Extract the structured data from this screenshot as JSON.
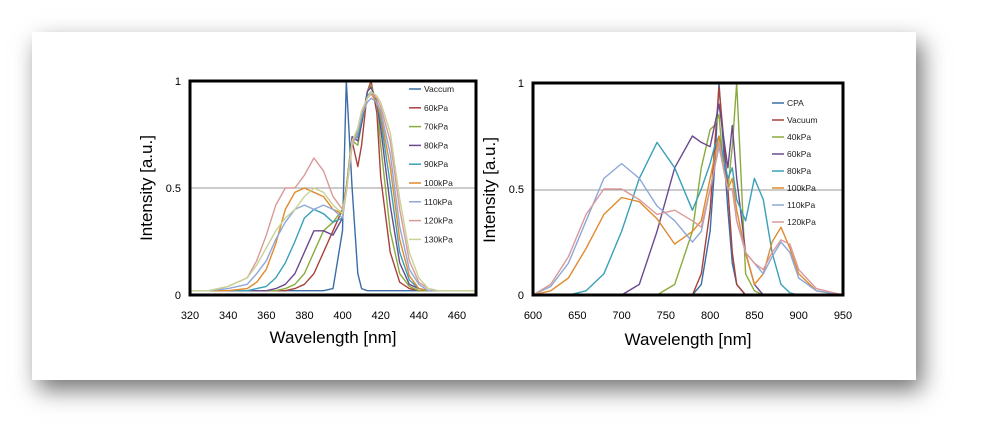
{
  "chart_data": [
    {
      "type": "line",
      "title": "",
      "xlabel": "Wavelength [nm]",
      "ylabel": "Intensity [a.u.]",
      "xlim": [
        320,
        470
      ],
      "ylim": [
        0,
        1
      ],
      "xticks": [
        "320",
        "340",
        "360",
        "380",
        "400",
        "420",
        "440",
        "460"
      ],
      "yticks": [
        "0",
        "0.5",
        "1"
      ],
      "grid": "horizontal",
      "legend_position": "top-right",
      "x": [
        320,
        330,
        340,
        350,
        355,
        360,
        365,
        370,
        375,
        380,
        385,
        390,
        395,
        400,
        402,
        405,
        408,
        410,
        413,
        415,
        418,
        420,
        425,
        430,
        435,
        440,
        445,
        450,
        460,
        470
      ],
      "series": [
        {
          "name": "Vaccum",
          "color": "#3a6da8",
          "values": [
            0.02,
            0.02,
            0.02,
            0.02,
            0.02,
            0.02,
            0.02,
            0.02,
            0.02,
            0.02,
            0.02,
            0.02,
            0.03,
            0.3,
            1.0,
            0.5,
            0.1,
            0.03,
            0.02,
            0.02,
            0.02,
            0.02,
            0.02,
            0.02,
            0.02,
            0.02,
            0.02,
            0.02,
            0.02,
            0.02
          ]
        },
        {
          "name": "60kPa",
          "color": "#a8413c",
          "values": [
            0.02,
            0.02,
            0.02,
            0.02,
            0.02,
            0.02,
            0.02,
            0.02,
            0.03,
            0.05,
            0.1,
            0.2,
            0.3,
            0.4,
            0.5,
            0.72,
            0.6,
            0.7,
            0.95,
            1.0,
            0.85,
            0.55,
            0.2,
            0.06,
            0.03,
            0.02,
            0.02,
            0.02,
            0.02,
            0.02
          ]
        },
        {
          "name": "70kPa",
          "color": "#8aab3c",
          "values": [
            0.02,
            0.02,
            0.02,
            0.02,
            0.02,
            0.02,
            0.02,
            0.03,
            0.05,
            0.1,
            0.2,
            0.3,
            0.34,
            0.4,
            0.5,
            0.72,
            0.7,
            0.8,
            0.95,
            0.98,
            0.9,
            0.7,
            0.3,
            0.1,
            0.04,
            0.02,
            0.02,
            0.02,
            0.02,
            0.02
          ]
        },
        {
          "name": "80kPa",
          "color": "#6a4a8e",
          "values": [
            0.02,
            0.02,
            0.02,
            0.02,
            0.02,
            0.02,
            0.03,
            0.05,
            0.1,
            0.2,
            0.3,
            0.3,
            0.28,
            0.36,
            0.5,
            0.74,
            0.72,
            0.8,
            0.95,
            0.97,
            0.9,
            0.78,
            0.42,
            0.15,
            0.05,
            0.03,
            0.02,
            0.02,
            0.02,
            0.02
          ]
        },
        {
          "name": "90kPa",
          "color": "#3aa0b8",
          "values": [
            0.02,
            0.02,
            0.02,
            0.02,
            0.03,
            0.04,
            0.08,
            0.15,
            0.25,
            0.36,
            0.4,
            0.38,
            0.34,
            0.36,
            0.5,
            0.72,
            0.74,
            0.82,
            0.93,
            0.95,
            0.9,
            0.82,
            0.52,
            0.2,
            0.07,
            0.03,
            0.02,
            0.02,
            0.02,
            0.02
          ]
        },
        {
          "name": "100kPa",
          "color": "#e08a2e",
          "values": [
            0.02,
            0.02,
            0.02,
            0.03,
            0.06,
            0.12,
            0.24,
            0.4,
            0.48,
            0.5,
            0.48,
            0.46,
            0.4,
            0.38,
            0.5,
            0.72,
            0.76,
            0.84,
            0.92,
            0.94,
            0.9,
            0.84,
            0.6,
            0.26,
            0.09,
            0.03,
            0.02,
            0.02,
            0.02,
            0.02
          ]
        },
        {
          "name": "110kPa",
          "color": "#8da8d8",
          "values": [
            0.02,
            0.02,
            0.03,
            0.05,
            0.1,
            0.16,
            0.26,
            0.34,
            0.4,
            0.42,
            0.4,
            0.42,
            0.4,
            0.36,
            0.48,
            0.7,
            0.76,
            0.84,
            0.9,
            0.92,
            0.9,
            0.86,
            0.66,
            0.32,
            0.12,
            0.05,
            0.02,
            0.02,
            0.02,
            0.02
          ]
        },
        {
          "name": "120kPa",
          "color": "#d89a98",
          "values": [
            0.02,
            0.02,
            0.04,
            0.08,
            0.16,
            0.28,
            0.42,
            0.5,
            0.5,
            0.56,
            0.64,
            0.58,
            0.46,
            0.4,
            0.48,
            0.7,
            0.78,
            0.86,
            0.92,
            0.94,
            0.92,
            0.88,
            0.72,
            0.4,
            0.16,
            0.06,
            0.03,
            0.02,
            0.02,
            0.02
          ]
        },
        {
          "name": "130kPa",
          "color": "#c8d296",
          "values": [
            0.02,
            0.02,
            0.04,
            0.08,
            0.14,
            0.22,
            0.3,
            0.36,
            0.4,
            0.46,
            0.5,
            0.48,
            0.42,
            0.38,
            0.48,
            0.72,
            0.78,
            0.86,
            0.92,
            0.95,
            0.93,
            0.9,
            0.76,
            0.45,
            0.2,
            0.08,
            0.03,
            0.02,
            0.02,
            0.02
          ]
        }
      ]
    },
    {
      "type": "line",
      "title": "",
      "xlabel": "Wavelength [nm]",
      "ylabel": "Intensity [a.u.]",
      "xlim": [
        600,
        950
      ],
      "ylim": [
        0,
        1
      ],
      "xticks": [
        "600",
        "650",
        "700",
        "750",
        "800",
        "850",
        "900",
        "950"
      ],
      "yticks": [
        "0",
        "0.5",
        "1"
      ],
      "grid": "horizontal",
      "legend_position": "top-right",
      "x": [
        600,
        620,
        640,
        660,
        680,
        700,
        720,
        740,
        760,
        780,
        790,
        800,
        805,
        810,
        815,
        820,
        825,
        830,
        840,
        850,
        860,
        870,
        880,
        890,
        900,
        920,
        950
      ],
      "series": [
        {
          "name": "CPA",
          "color": "#3a6da8",
          "values": [
            0,
            0,
            0,
            0,
            0,
            0,
            0,
            0,
            0,
            0,
            0.05,
            0.3,
            0.6,
            1.0,
            0.7,
            0.4,
            0.15,
            0.05,
            0,
            0,
            0,
            0,
            0,
            0,
            0,
            0,
            0
          ]
        },
        {
          "name": "Vacuum",
          "color": "#a8413c",
          "values": [
            0,
            0,
            0,
            0,
            0,
            0,
            0,
            0,
            0,
            0,
            0.1,
            0.4,
            0.7,
            0.98,
            0.75,
            0.5,
            0.2,
            0.05,
            0,
            0,
            0,
            0,
            0,
            0,
            0,
            0,
            0
          ]
        },
        {
          "name": "40kPa",
          "color": "#8aab3c",
          "values": [
            0,
            0,
            0,
            0,
            0,
            0,
            0,
            0,
            0.05,
            0.3,
            0.6,
            0.78,
            0.8,
            0.85,
            0.6,
            0.5,
            0.7,
            1.0,
            0.1,
            0.02,
            0,
            0,
            0,
            0,
            0,
            0,
            0
          ]
        },
        {
          "name": "60kPa",
          "color": "#6a4a8e",
          "values": [
            0,
            0,
            0,
            0,
            0,
            0,
            0.05,
            0.3,
            0.6,
            0.75,
            0.72,
            0.7,
            0.8,
            0.9,
            0.75,
            0.6,
            0.8,
            0.55,
            0.2,
            0.05,
            0,
            0,
            0,
            0,
            0,
            0,
            0
          ]
        },
        {
          "name": "80kPa",
          "color": "#3aa0b8",
          "values": [
            0,
            0,
            0,
            0.02,
            0.1,
            0.3,
            0.55,
            0.72,
            0.6,
            0.4,
            0.5,
            0.62,
            0.7,
            0.75,
            0.65,
            0.55,
            0.6,
            0.45,
            0.35,
            0.55,
            0.45,
            0.2,
            0.05,
            0.01,
            0,
            0,
            0
          ]
        },
        {
          "name": "100kPa",
          "color": "#e08a2e",
          "values": [
            0,
            0.02,
            0.08,
            0.22,
            0.38,
            0.46,
            0.44,
            0.36,
            0.24,
            0.3,
            0.35,
            0.55,
            0.65,
            0.75,
            0.6,
            0.5,
            0.55,
            0.4,
            0.2,
            0.05,
            0.1,
            0.25,
            0.32,
            0.22,
            0.1,
            0.02,
            0
          ]
        },
        {
          "name": "110kPa",
          "color": "#8da8d8",
          "values": [
            0,
            0.04,
            0.15,
            0.35,
            0.55,
            0.62,
            0.55,
            0.42,
            0.35,
            0.25,
            0.3,
            0.5,
            0.6,
            0.7,
            0.6,
            0.5,
            0.5,
            0.35,
            0.2,
            0.15,
            0.1,
            0.18,
            0.25,
            0.2,
            0.08,
            0.02,
            0
          ]
        },
        {
          "name": "120kPa",
          "color": "#d89a98",
          "values": [
            0,
            0.05,
            0.18,
            0.38,
            0.5,
            0.5,
            0.45,
            0.38,
            0.4,
            0.35,
            0.32,
            0.5,
            0.6,
            0.72,
            0.6,
            0.5,
            0.5,
            0.35,
            0.2,
            0.15,
            0.12,
            0.2,
            0.26,
            0.24,
            0.12,
            0.03,
            0
          ]
        }
      ]
    }
  ]
}
